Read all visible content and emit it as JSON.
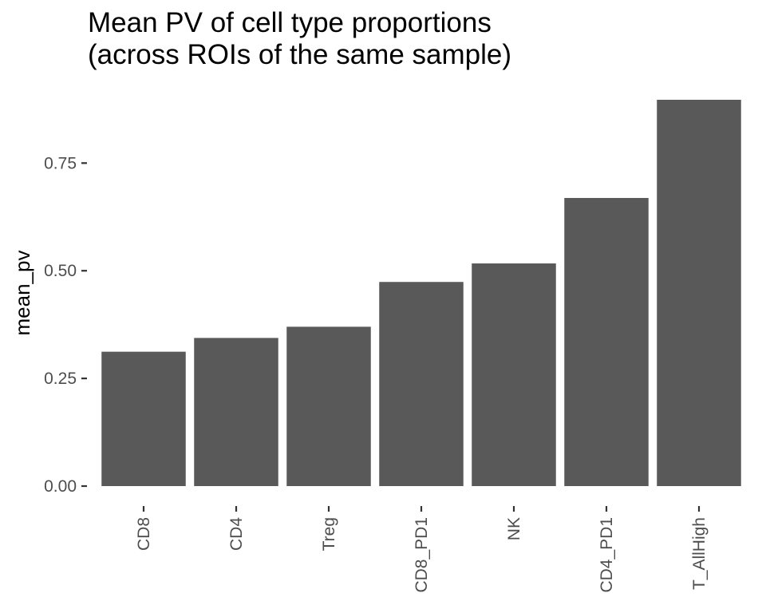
{
  "chart_data": {
    "type": "bar",
    "title": [
      "Mean PV of cell type proportions",
      "(across ROIs of the same sample)"
    ],
    "xlabel": "",
    "ylabel": "mean_pv",
    "categories": [
      "CD8",
      "CD4",
      "Treg",
      "CD8_PD1",
      "NK",
      "CD4_PD1",
      "T_AllHigh"
    ],
    "values": [
      0.312,
      0.344,
      0.37,
      0.474,
      0.517,
      0.669,
      0.897
    ],
    "ylim": [
      0,
      0.897
    ],
    "yticks": [
      0.0,
      0.25,
      0.5,
      0.75
    ],
    "ytick_labels": [
      "0.00",
      "0.25",
      "0.50",
      "0.75"
    ],
    "grid": false,
    "legend": "none",
    "bar_color": "#595959",
    "x_tick_label_rotation": "vertical"
  }
}
